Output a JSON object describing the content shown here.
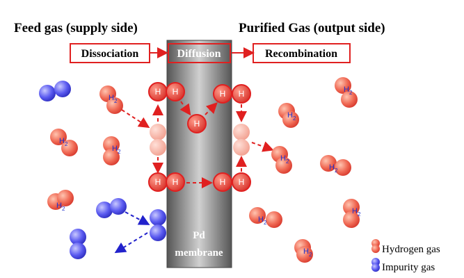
{
  "headings": {
    "left": "Feed gas (supply side)",
    "right": "Purified Gas (output side)"
  },
  "steps": [
    "Dissociation",
    "Diffusion",
    "Recombination"
  ],
  "membrane_label": [
    "Pd",
    "membrane"
  ],
  "atom_label": "H",
  "molecule_label": {
    "main": "H",
    "sub": "2"
  },
  "legend": [
    "Hydrogen gas",
    "Impurity gas"
  ]
}
